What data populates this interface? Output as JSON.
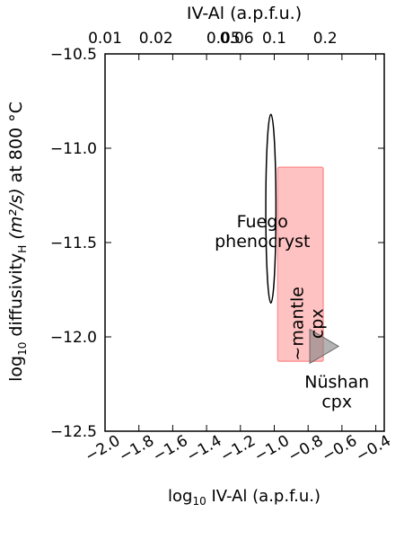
{
  "chart_data": {
    "type": "scatter",
    "title": "",
    "xlabel_main": "log",
    "xlabel_sub": "10",
    "xlabel_rest": " IV-Al (a.p.f.u.)",
    "ylabel_main": "log",
    "ylabel_sub": "10",
    "ylabel_mid": " diffusivity",
    "ylabel_sub2": "H",
    "ylabel_math": " (m²/s)",
    "ylabel_end": " at 800 °C",
    "top_xlabel": "IV-Al (a.p.f.u.)",
    "xlim": [
      -2.0,
      -0.35
    ],
    "ylim": [
      -12.5,
      -10.5
    ],
    "xticks": [
      -2.0,
      -1.8,
      -1.6,
      -1.4,
      -1.2,
      -1.0,
      -0.8,
      -0.6,
      -0.4
    ],
    "xtick_labels": [
      "−2.0",
      "−1.8",
      "−1.6",
      "−1.4",
      "−1.2",
      "−1.0",
      "−0.8",
      "−0.6",
      "−0.4"
    ],
    "yticks": [
      -10.5,
      -11.0,
      -11.5,
      -12.0,
      -12.5
    ],
    "ytick_labels": [
      "−10.5",
      "−11.0",
      "−11.5",
      "−12.0",
      "−12.5"
    ],
    "top_ticks": [
      0.01,
      0.02,
      0.05,
      0.06,
      0.1,
      0.2
    ],
    "top_tick_labels": [
      "0.01",
      "0.02",
      "0.05",
      "0.06",
      "0.1",
      "0.2"
    ],
    "grid": false,
    "shapes": [
      {
        "kind": "ellipse",
        "label": "",
        "cx": -1.02,
        "cy": -11.32,
        "rx": 0.03,
        "ry": 0.5,
        "color": "#000000",
        "fill": "none"
      },
      {
        "kind": "rect",
        "label": "",
        "x0": -0.98,
        "x1": -0.71,
        "y0": -12.13,
        "y1": -11.1,
        "color": "#ff0000",
        "fill": "#ff9999",
        "alpha": 0.6
      },
      {
        "kind": "triangle",
        "label": "",
        "points": [
          [
            -0.79,
            -11.96
          ],
          [
            -0.79,
            -12.14
          ],
          [
            -0.62,
            -12.05
          ]
        ],
        "color": "#666666",
        "fill": "#808080",
        "alpha": 0.6
      }
    ],
    "annotations": [
      {
        "lines": [
          "Fuego",
          "phenocryst"
        ],
        "x": -1.07,
        "y": -11.42,
        "rotate": 0
      },
      {
        "lines": [
          "~mantle",
          "cpx"
        ],
        "x": -0.83,
        "y": -11.93,
        "rotate": -90
      },
      {
        "lines": [
          "Nüshan",
          "cpx"
        ],
        "x": -0.63,
        "y": -12.27,
        "rotate": 0
      }
    ]
  }
}
